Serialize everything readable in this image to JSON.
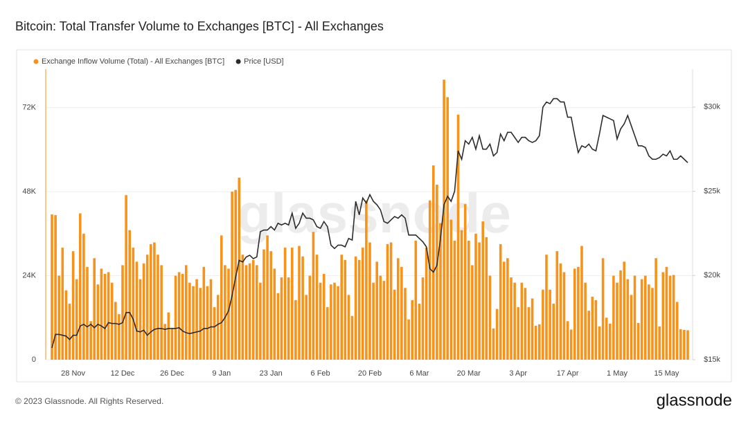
{
  "chart_data": {
    "type": "bar-line",
    "title": "Bitcoin: Total Transfer Volume to Exchanges [BTC] - All Exchanges",
    "watermark": "glassnode",
    "footer": "© 2023 Glassnode. All Rights Reserved.",
    "logo": "glassnode",
    "categories": [
      null,
      null,
      null,
      null,
      null,
      null,
      "28 Nov",
      null,
      null,
      null,
      null,
      null,
      null,
      null,
      null,
      null,
      null,
      null,
      null,
      null,
      "12 Dec",
      null,
      null,
      null,
      null,
      null,
      null,
      null,
      null,
      null,
      null,
      null,
      null,
      null,
      "26 Dec",
      null,
      null,
      null,
      null,
      null,
      null,
      null,
      null,
      null,
      null,
      null,
      null,
      null,
      "9 Jan",
      null,
      null,
      null,
      null,
      null,
      null,
      null,
      null,
      null,
      null,
      null,
      null,
      null,
      "23 Jan",
      null,
      null,
      null,
      null,
      null,
      null,
      null,
      null,
      null,
      null,
      null,
      null,
      null,
      "6 Feb",
      null,
      null,
      null,
      null,
      null,
      null,
      null,
      null,
      null,
      null,
      null,
      null,
      null,
      "20 Feb",
      null,
      null,
      null,
      null,
      null,
      null,
      null,
      null,
      null,
      null,
      null,
      null,
      null,
      "6 Mar",
      null,
      null,
      null,
      null,
      null,
      null,
      null,
      null,
      null,
      null,
      null,
      null,
      null,
      "20 Mar",
      null,
      null,
      null,
      null,
      null,
      null,
      null,
      null,
      null,
      null,
      null,
      null,
      null,
      "3 Apr",
      null,
      null,
      null,
      null,
      null,
      null,
      null,
      null,
      null,
      null,
      null,
      null,
      null,
      "17 Apr",
      null,
      null,
      null,
      null,
      null,
      null,
      null,
      null,
      null,
      null,
      null,
      null,
      null,
      "1 May",
      null,
      null,
      null,
      null,
      null,
      null,
      null,
      null,
      null,
      null,
      null,
      null,
      null,
      "15 May",
      null,
      null,
      null,
      null,
      null,
      null
    ],
    "series": [
      {
        "name": "Exchange Inflow Volume (Total) - All Exchanges [BTC]",
        "type": "bar",
        "color": "#f7931a",
        "values": [
          41500,
          41300,
          24000,
          32000,
          19800,
          16000,
          31000,
          23000,
          41800,
          36000,
          26500,
          11000,
          29000,
          21500,
          26000,
          24500,
          25000,
          22000,
          16500,
          13000,
          27000,
          47000,
          37000,
          32000,
          28000,
          23000,
          27500,
          30000,
          33000,
          33500,
          30000,
          27000,
          10200,
          13500,
          9000,
          24000,
          25000,
          24500,
          27000,
          22000,
          21000,
          23000,
          20500,
          26500,
          21000,
          23000,
          15000,
          18500,
          35500,
          27000,
          26000,
          48000,
          48500,
          52000,
          30000,
          27000,
          27500,
          28500,
          27000,
          22000,
          31500,
          35500,
          31000,
          26000,
          19000,
          23500,
          32000,
          23500,
          32000,
          17000,
          32500,
          29500,
          18500,
          24000,
          36500,
          30000,
          22000,
          24500,
          15000,
          21500,
          22000,
          21000,
          30000,
          28500,
          18500,
          12500,
          29500,
          28500,
          32000,
          45500,
          33500,
          22000,
          28000,
          24000,
          22500,
          33000,
          33500,
          20000,
          29000,
          26500,
          20500,
          11500,
          17000,
          34000,
          16000,
          23500,
          32000,
          45500,
          55500,
          50000,
          39000,
          80000,
          75000,
          40000,
          34000,
          70000,
          37000,
          44500,
          34000,
          27000,
          36000,
          33500,
          39500,
          35000,
          24000,
          8900,
          14500,
          33000,
          28000,
          29000,
          23500,
          22000,
          15000,
          22000,
          20500,
          15000,
          17500,
          9700,
          10100,
          20000,
          30000,
          20000,
          16000,
          31000,
          27500,
          25000,
          11000,
          8600,
          26000,
          26500,
          32500,
          22000,
          14000,
          18000,
          17000,
          9500,
          29000,
          12000,
          10300,
          24000,
          22000,
          25500,
          28000,
          23000,
          18500,
          24000,
          10500,
          23000,
          24000,
          21500,
          20500,
          29000,
          9500,
          25000,
          26500,
          24000,
          24200,
          16500,
          8700,
          8500,
          8400
        ]
      },
      {
        "name": "Price [USD]",
        "type": "line",
        "axis": "y2",
        "color": "#2b2b2b",
        "values": [
          15700,
          16500,
          16500,
          16450,
          16400,
          16200,
          16450,
          16450,
          17000,
          17100,
          16950,
          17100,
          16900,
          17100,
          17000,
          16850,
          17200,
          17150,
          17150,
          17100,
          17200,
          17800,
          17800,
          17400,
          16700,
          16650,
          16750,
          16450,
          16650,
          16800,
          16850,
          16850,
          16800,
          16850,
          16850,
          16850,
          16900,
          16700,
          16600,
          16550,
          16600,
          16650,
          16700,
          16850,
          16850,
          16950,
          16950,
          17100,
          17200,
          17500,
          17900,
          18800,
          19900,
          20900,
          20800,
          21100,
          21200,
          21000,
          21100,
          22600,
          22700,
          22700,
          22900,
          22700,
          23100,
          23000,
          23100,
          23000,
          23700,
          22800,
          23100,
          23700,
          23400,
          23400,
          23300,
          22900,
          22800,
          23200,
          22900,
          21800,
          21600,
          21800,
          21800,
          21700,
          22200,
          22100,
          24400,
          23600,
          24600,
          24300,
          24800,
          24400,
          24200,
          23900,
          23200,
          23100,
          23300,
          23500,
          23400,
          23600,
          23400,
          22400,
          22400,
          22400,
          22200,
          22000,
          21700,
          20400,
          20200,
          20600,
          22200,
          24200,
          24700,
          24400,
          25000,
          27400,
          26900,
          28000,
          27800,
          28200,
          27500,
          28300,
          27500,
          27500,
          27800,
          27100,
          27300,
          28400,
          28000,
          28500,
          28500,
          28200,
          27900,
          28200,
          28200,
          28000,
          27900,
          28000,
          28300,
          30000,
          30300,
          30200,
          30500,
          30500,
          30300,
          30300,
          29400,
          29400,
          28300,
          27300,
          27700,
          27600,
          27800,
          27500,
          27400,
          28400,
          29500,
          29400,
          29300,
          29200,
          28100,
          28700,
          29000,
          29500,
          28900,
          28300,
          27700,
          27700,
          27600,
          27100,
          26900,
          26900,
          27000,
          27200,
          27100,
          27400,
          26900,
          26900,
          27100,
          26900,
          26700
        ]
      }
    ],
    "ylim": [
      0,
      83000
    ],
    "yticks": [
      0,
      {
        "value": 24000,
        "label": "24K"
      },
      {
        "value": 48000,
        "label": "48K"
      },
      {
        "value": 72000,
        "label": "72K"
      }
    ],
    "y2lim": [
      15000,
      32250
    ],
    "y2ticks": [
      {
        "value": 15000,
        "label": "$15k"
      },
      {
        "value": 20000,
        "label": "$20k"
      },
      {
        "value": 25000,
        "label": "$25k"
      },
      {
        "value": 30000,
        "label": "$30k"
      }
    ],
    "grid": true,
    "legend": "top-left"
  }
}
